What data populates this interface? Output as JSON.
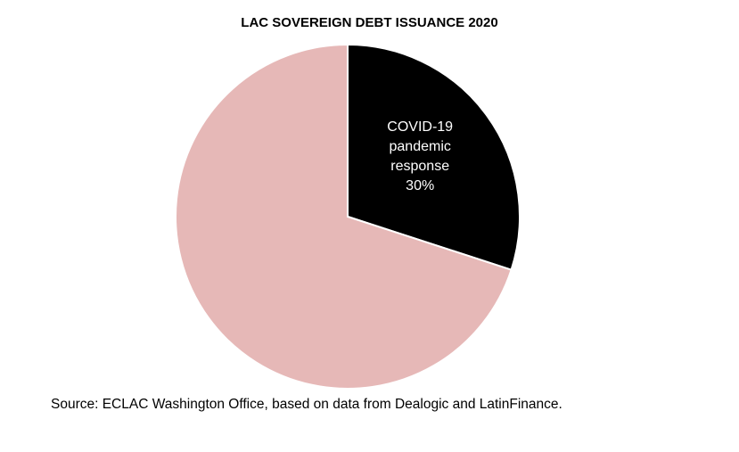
{
  "chart_data": {
    "type": "pie",
    "title": "LAC SOVEREIGN DEBT ISSUANCE 2020",
    "categories": [
      "COVID-19 pandemic response",
      null
    ],
    "values": [
      30,
      70
    ],
    "value_labels": [
      "30%",
      null
    ],
    "colors": [
      "#000000",
      "#e6b8b7"
    ],
    "source": "Source: ECLAC Washington Office, based on data from Dealogic and LatinFinance."
  }
}
